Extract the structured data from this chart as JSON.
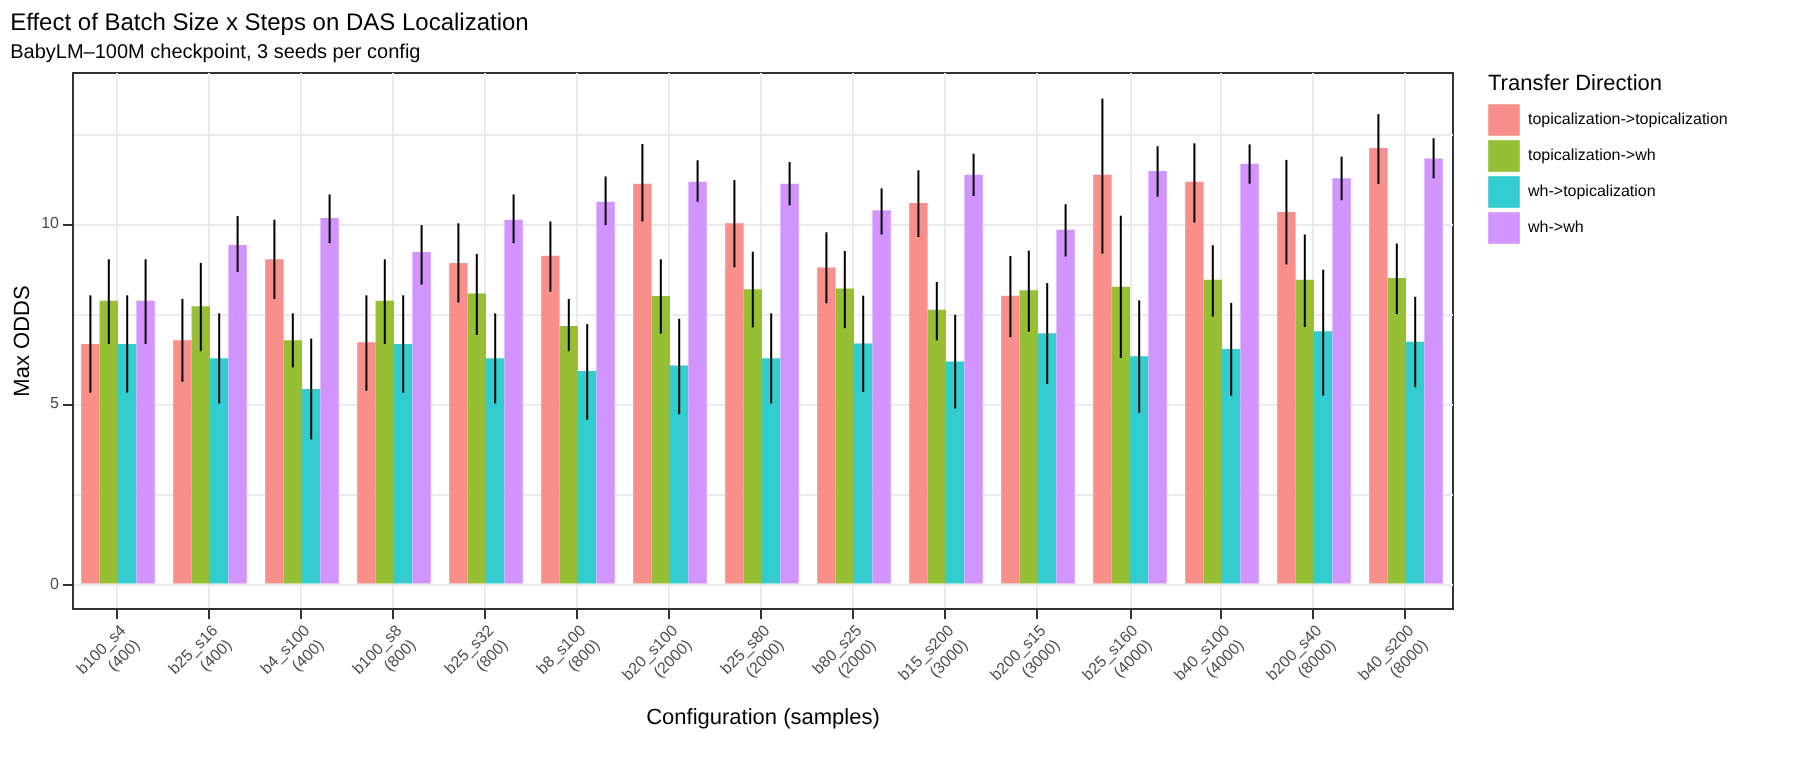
{
  "chart_data": {
    "type": "bar",
    "title": "Effect of Batch Size x Steps on DAS Localization",
    "subtitle": "BabyLM–100M checkpoint, 3 seeds per config",
    "xlabel": "Configuration (samples)",
    "ylabel": "Max ODDS",
    "legend_title": "Transfer Direction",
    "categories": [
      "b100_s4\n(400)",
      "b25_s16\n(400)",
      "b4_s100\n(400)",
      "b100_s8\n(800)",
      "b25_s32\n(800)",
      "b8_s100\n(800)",
      "b20_s100\n(2000)",
      "b25_s80\n(2000)",
      "b80_s25\n(2000)",
      "b15_s200\n(3000)",
      "b200_s15\n(3000)",
      "b25_s160\n(4000)",
      "b40_s100\n(4000)",
      "b200_s40\n(8000)",
      "b40_s200\n(8000)"
    ],
    "series": [
      {
        "name": "topicalization->topicalization",
        "color": "#f98f8a",
        "values": [
          6.65,
          6.75,
          9.0,
          6.7,
          8.9,
          9.1,
          11.1,
          10.0,
          8.77,
          10.56,
          7.99,
          11.35,
          11.15,
          10.31,
          12.09
        ],
        "errors": [
          [
            5.3,
            8.0
          ],
          [
            5.6,
            7.9
          ],
          [
            7.9,
            10.1
          ],
          [
            5.35,
            8.0
          ],
          [
            7.8,
            10.0
          ],
          [
            8.1,
            10.05
          ],
          [
            10.05,
            12.2
          ],
          [
            8.78,
            11.2
          ],
          [
            7.78,
            9.75
          ],
          [
            9.62,
            11.47
          ],
          [
            6.84,
            9.09
          ],
          [
            9.16,
            13.46
          ],
          [
            10.02,
            12.22
          ],
          [
            8.86,
            11.76
          ],
          [
            11.09,
            13.03
          ]
        ]
      },
      {
        "name": "topicalization->wh",
        "color": "#96bf33",
        "values": [
          7.85,
          7.7,
          6.75,
          7.85,
          8.05,
          7.15,
          7.98,
          8.17,
          8.19,
          7.6,
          8.14,
          8.24,
          8.43,
          8.43,
          8.48
        ],
        "errors": [
          [
            6.65,
            9.0
          ],
          [
            6.45,
            8.9
          ],
          [
            6.0,
            7.5
          ],
          [
            6.65,
            9.0
          ],
          [
            6.9,
            9.15
          ],
          [
            6.45,
            7.9
          ],
          [
            6.94,
            9.0
          ],
          [
            7.11,
            9.21
          ],
          [
            7.09,
            9.23
          ],
          [
            6.75,
            8.37
          ],
          [
            6.99,
            9.24
          ],
          [
            6.26,
            10.21
          ],
          [
            7.41,
            9.39
          ],
          [
            7.12,
            9.69
          ],
          [
            7.48,
            9.44
          ]
        ]
      },
      {
        "name": "wh->topicalization",
        "color": "#33cccf",
        "values": [
          6.65,
          6.25,
          5.4,
          6.65,
          6.25,
          5.9,
          6.05,
          6.25,
          6.66,
          6.16,
          6.95,
          6.31,
          6.51,
          7.0,
          6.71
        ],
        "errors": [
          [
            5.3,
            8.0
          ],
          [
            5.0,
            7.5
          ],
          [
            4.0,
            6.8
          ],
          [
            5.3,
            8.0
          ],
          [
            5.0,
            7.5
          ],
          [
            4.55,
            7.2
          ],
          [
            4.7,
            7.35
          ],
          [
            5.0,
            7.5
          ],
          [
            5.32,
            7.99
          ],
          [
            4.86,
            7.46
          ],
          [
            5.54,
            8.34
          ],
          [
            4.74,
            7.86
          ],
          [
            5.21,
            7.79
          ],
          [
            5.22,
            8.71
          ],
          [
            5.45,
            7.96
          ]
        ]
      },
      {
        "name": "wh->wh",
        "color": "#d294ff",
        "values": [
          7.85,
          9.4,
          10.15,
          9.2,
          10.1,
          10.6,
          11.15,
          11.1,
          10.36,
          11.35,
          9.82,
          11.45,
          11.65,
          11.25,
          11.8
        ],
        "errors": [
          [
            6.65,
            9.0
          ],
          [
            8.65,
            10.2
          ],
          [
            9.45,
            10.8
          ],
          [
            8.3,
            9.95
          ],
          [
            9.45,
            10.8
          ],
          [
            9.95,
            11.3
          ],
          [
            10.6,
            11.75
          ],
          [
            10.5,
            11.7
          ],
          [
            9.69,
            10.97
          ],
          [
            10.76,
            11.93
          ],
          [
            9.08,
            10.53
          ],
          [
            10.74,
            12.14
          ],
          [
            11.1,
            12.19
          ],
          [
            10.64,
            11.85
          ],
          [
            11.25,
            12.36
          ]
        ]
      }
    ],
    "ylim": [
      -0.68,
      14.2
    ],
    "yticks": [
      0,
      {
        "value": 2.5,
        "label": null
      },
      5,
      {
        "value": 7.5,
        "label": null
      },
      10,
      {
        "value": 12.5,
        "label": null
      }
    ],
    "grid": true,
    "legend": "right"
  }
}
